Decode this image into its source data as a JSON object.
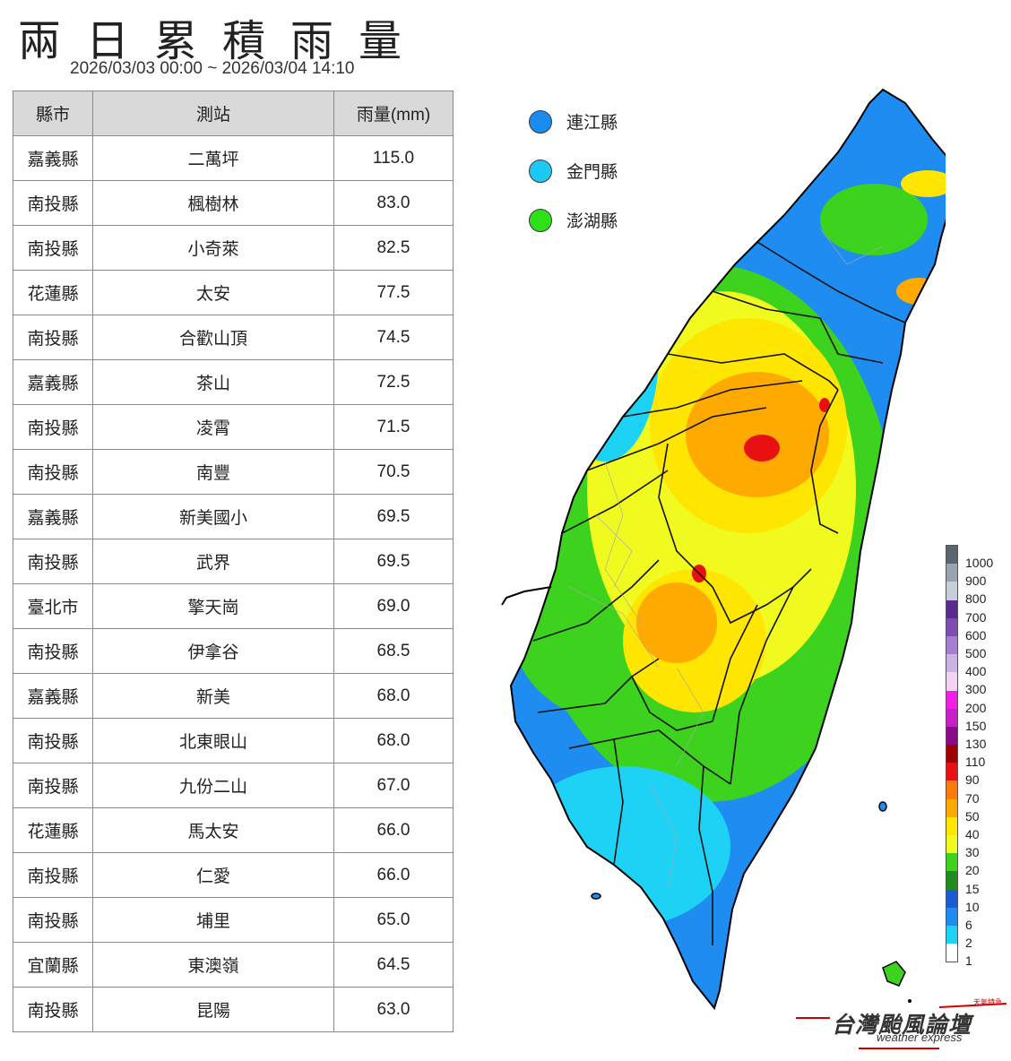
{
  "title": "兩日累積雨量",
  "subtitle": "2026/03/03 00:00 ~ 2026/03/04 14:10",
  "table": {
    "headers": [
      "縣市",
      "測站",
      "雨量(mm)"
    ],
    "rows": [
      [
        "嘉義縣",
        "二萬坪",
        "115.0"
      ],
      [
        "南投縣",
        "楓樹林",
        "83.0"
      ],
      [
        "南投縣",
        "小奇萊",
        "82.5"
      ],
      [
        "花蓮縣",
        "太安",
        "77.5"
      ],
      [
        "南投縣",
        "合歡山頂",
        "74.5"
      ],
      [
        "嘉義縣",
        "茶山",
        "72.5"
      ],
      [
        "南投縣",
        "凌霄",
        "71.5"
      ],
      [
        "南投縣",
        "南豐",
        "70.5"
      ],
      [
        "嘉義縣",
        "新美國小",
        "69.5"
      ],
      [
        "南投縣",
        "武界",
        "69.5"
      ],
      [
        "臺北市",
        "擎天崗",
        "69.0"
      ],
      [
        "南投縣",
        "伊拿谷",
        "68.5"
      ],
      [
        "嘉義縣",
        "新美",
        "68.0"
      ],
      [
        "南投縣",
        "北東眼山",
        "68.0"
      ],
      [
        "南投縣",
        "九份二山",
        "67.0"
      ],
      [
        "花蓮縣",
        "馬太安",
        "66.0"
      ],
      [
        "南投縣",
        "仁愛",
        "66.0"
      ],
      [
        "南投縣",
        "埔里",
        "65.0"
      ],
      [
        "宜蘭縣",
        "東澳嶺",
        "64.5"
      ],
      [
        "南投縣",
        "昆陽",
        "63.0"
      ]
    ]
  },
  "islands": [
    {
      "name": "連江縣",
      "color": "#1a8cf0"
    },
    {
      "name": "金門縣",
      "color": "#1ec8f5"
    },
    {
      "name": "澎湖縣",
      "color": "#2ee01a"
    }
  ],
  "scale": {
    "labels": [
      "1000",
      "900",
      "800",
      "700",
      "600",
      "500",
      "400",
      "300",
      "200",
      "150",
      "130",
      "110",
      "90",
      "70",
      "50",
      "40",
      "30",
      "20",
      "15",
      "10",
      "6",
      "2",
      "1"
    ],
    "colors": [
      "#5a6570",
      "#97a3b0",
      "#c6ced6",
      "#5a2a8e",
      "#7f4cb4",
      "#a57ed2",
      "#cbb2e6",
      "#f4d4f4",
      "#f020e6",
      "#c81ec8",
      "#8a0a8a",
      "#a00000",
      "#e81010",
      "#fc7a0a",
      "#ffaa00",
      "#ffe600",
      "#f0fa1e",
      "#3cd21e",
      "#208c20",
      "#1a5ad2",
      "#1e8cf0",
      "#1ed2f5",
      "#ffffff"
    ]
  },
  "brand": {
    "name": "台灣颱風論壇",
    "sub": "weather express",
    "tag": "天氣特急"
  }
}
